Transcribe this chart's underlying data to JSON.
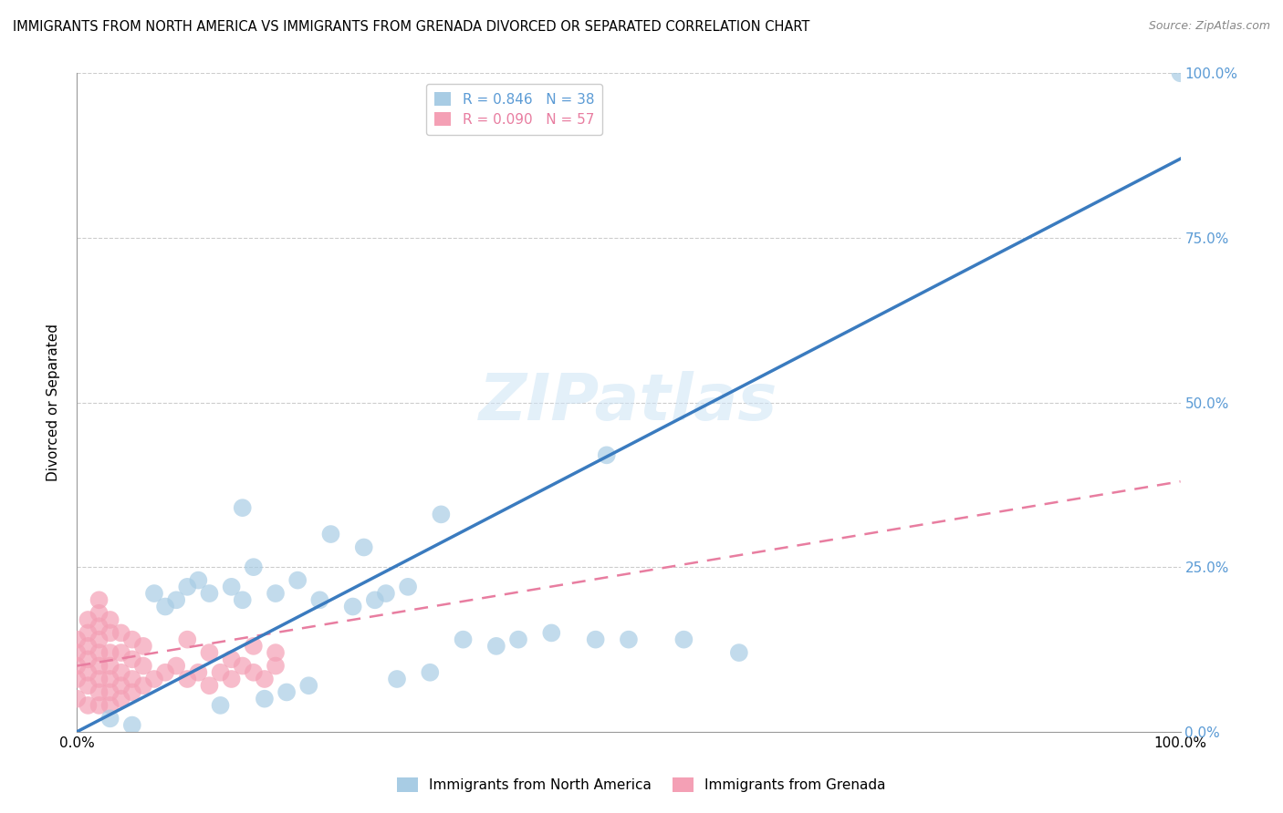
{
  "title": "IMMIGRANTS FROM NORTH AMERICA VS IMMIGRANTS FROM GRENADA DIVORCED OR SEPARATED CORRELATION CHART",
  "source": "Source: ZipAtlas.com",
  "ylabel": "Divorced or Separated",
  "legend_label1": "Immigrants from North America",
  "legend_label2": "Immigrants from Grenada",
  "legend_r1": "R = 0.846",
  "legend_n1": "N = 38",
  "legend_r2": "R = 0.090",
  "legend_n2": "N = 57",
  "color_blue": "#a8cce4",
  "color_pink": "#f4a0b5",
  "color_line_blue": "#3a7bbf",
  "color_line_pink": "#e87da0",
  "color_right_axis": "#5b9bd5",
  "watermark": "ZIPatlas",
  "blue_scatter_x": [
    0.03,
    0.05,
    0.07,
    0.08,
    0.09,
    0.1,
    0.11,
    0.12,
    0.13,
    0.14,
    0.15,
    0.16,
    0.17,
    0.18,
    0.19,
    0.2,
    0.21,
    0.22,
    0.23,
    0.25,
    0.27,
    0.28,
    0.29,
    0.3,
    0.32,
    0.35,
    0.38,
    0.4,
    0.43,
    0.47,
    0.5,
    0.55,
    0.6,
    0.48,
    0.33,
    0.26,
    0.15,
    1.0
  ],
  "blue_scatter_y": [
    0.02,
    0.01,
    0.21,
    0.19,
    0.2,
    0.22,
    0.23,
    0.21,
    0.04,
    0.22,
    0.2,
    0.25,
    0.05,
    0.21,
    0.06,
    0.23,
    0.07,
    0.2,
    0.3,
    0.19,
    0.2,
    0.21,
    0.08,
    0.22,
    0.09,
    0.14,
    0.13,
    0.14,
    0.15,
    0.14,
    0.14,
    0.14,
    0.12,
    0.42,
    0.33,
    0.28,
    0.34,
    1.0
  ],
  "pink_scatter_x": [
    0.0,
    0.0,
    0.0,
    0.0,
    0.0,
    0.01,
    0.01,
    0.01,
    0.01,
    0.01,
    0.01,
    0.01,
    0.02,
    0.02,
    0.02,
    0.02,
    0.02,
    0.02,
    0.02,
    0.02,
    0.02,
    0.03,
    0.03,
    0.03,
    0.03,
    0.03,
    0.03,
    0.03,
    0.04,
    0.04,
    0.04,
    0.04,
    0.04,
    0.05,
    0.05,
    0.05,
    0.05,
    0.06,
    0.06,
    0.06,
    0.07,
    0.08,
    0.09,
    0.1,
    0.11,
    0.12,
    0.13,
    0.14,
    0.15,
    0.16,
    0.17,
    0.18,
    0.1,
    0.12,
    0.14,
    0.16,
    0.18
  ],
  "pink_scatter_y": [
    0.05,
    0.08,
    0.1,
    0.12,
    0.14,
    0.04,
    0.07,
    0.09,
    0.11,
    0.13,
    0.15,
    0.17,
    0.04,
    0.06,
    0.08,
    0.1,
    0.12,
    0.14,
    0.16,
    0.18,
    0.2,
    0.04,
    0.06,
    0.08,
    0.1,
    0.12,
    0.15,
    0.17,
    0.05,
    0.07,
    0.09,
    0.12,
    0.15,
    0.06,
    0.08,
    0.11,
    0.14,
    0.07,
    0.1,
    0.13,
    0.08,
    0.09,
    0.1,
    0.08,
    0.09,
    0.07,
    0.09,
    0.08,
    0.1,
    0.09,
    0.08,
    0.1,
    0.14,
    0.12,
    0.11,
    0.13,
    0.12
  ],
  "blue_line_x": [
    0.0,
    1.0
  ],
  "blue_line_y": [
    0.0,
    0.87
  ],
  "pink_line_x": [
    0.0,
    1.0
  ],
  "pink_line_y": [
    0.1,
    0.38
  ],
  "yticks": [
    0.0,
    0.25,
    0.5,
    0.75,
    1.0
  ],
  "ytick_labels_right": [
    "0.0%",
    "25.0%",
    "50.0%",
    "75.0%",
    "100.0%"
  ],
  "xticks": [
    0.0,
    1.0
  ],
  "xtick_labels": [
    "0.0%",
    "100.0%"
  ]
}
